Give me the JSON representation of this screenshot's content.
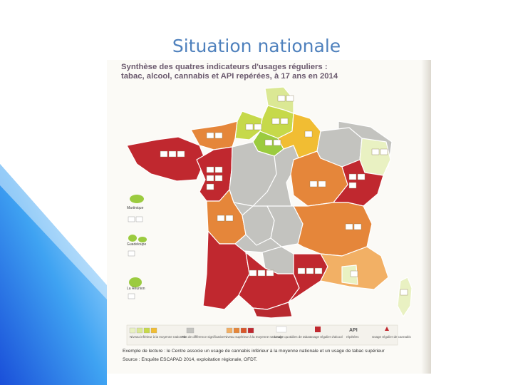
{
  "slide": {
    "title": "Situation nationale"
  },
  "figure": {
    "heading_line1": "Synthèse des quatres indicateurs d'usages réguliers :",
    "heading_line2": "tabac, alcool, cannabis et API repérées, à 17 ans en 2014",
    "insets": {
      "martinique": "Martinique",
      "guadeloupe": "Guadeloupe",
      "reunion": "La Réunion"
    },
    "legend": {
      "below_national": "Niveau inférieur à la moyenne nationale",
      "near_national": "Pas de différence significative",
      "above_national": "Niveau supérieur à la moyenne nationale",
      "tabac": "Usage quotidien de tabac",
      "alcool": "Usage régulier d'alcool",
      "api": "API",
      "api_sub": "répétées",
      "cannabis": "Usage régulier de cannabis"
    },
    "footer_line1": "Exemple de lecture : le Centre associe un usage de cannabis inférieur à la moyenne nationale et un usage de tabac supérieur",
    "footer_line2": "Source : Enquête ESCAPAD 2014, exploitation régionale, OFDT."
  },
  "colors": {
    "title": "#4f81bd",
    "red": "#c0282f",
    "dark_orange": "#d9572b",
    "orange": "#e5863a",
    "light_orange": "#f2b065",
    "amber": "#f1bd33",
    "yellow_green": "#c6d94a",
    "light_green": "#dbe894",
    "pale_green": "#e9f1c2",
    "grey": "#c3c3bf"
  }
}
